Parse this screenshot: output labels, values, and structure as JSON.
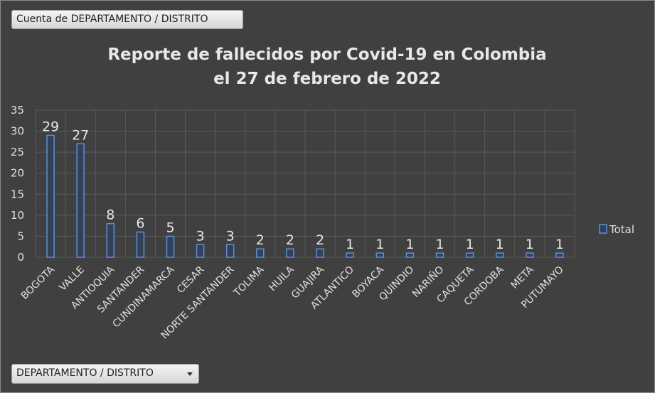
{
  "pivot": {
    "value_field": "Cuenta de DEPARTAMENTO / DISTRITO",
    "axis_field": "DEPARTAMENTO / DISTRITO"
  },
  "chart_data": {
    "type": "bar",
    "title_line1": "Reporte de fallecidos por Covid-19 en Colombia",
    "title_line2": "el 27 de febrero de 2022",
    "categories": [
      "BOGOTA",
      "VALLE",
      "ANTIOQUIA",
      "SANTANDER",
      "CUNDINAMARCA",
      "CESAR",
      "NORTE SANTANDER",
      "TOLIMA",
      "HUILA",
      "GUAJIRA",
      "ATLANTICO",
      "BOYACA",
      "QUINDIO",
      "NARIÑO",
      "CAQUETA",
      "CORDOBA",
      "META",
      "PUTUMAYO"
    ],
    "series": [
      {
        "name": "Total",
        "values": [
          29,
          27,
          8,
          6,
          5,
          3,
          3,
          2,
          2,
          2,
          1,
          1,
          1,
          1,
          1,
          1,
          1,
          1
        ]
      }
    ],
    "ylim": [
      0,
      35
    ],
    "yticks": [
      "0",
      "5",
      "10",
      "15",
      "20",
      "25",
      "30",
      "35"
    ],
    "grid": true,
    "legend_position": "right",
    "colors": {
      "bar_edge": "#5b8fd6",
      "bar_fill": "#33405a",
      "grid": "#5a5a5a",
      "background": "#404040"
    }
  }
}
